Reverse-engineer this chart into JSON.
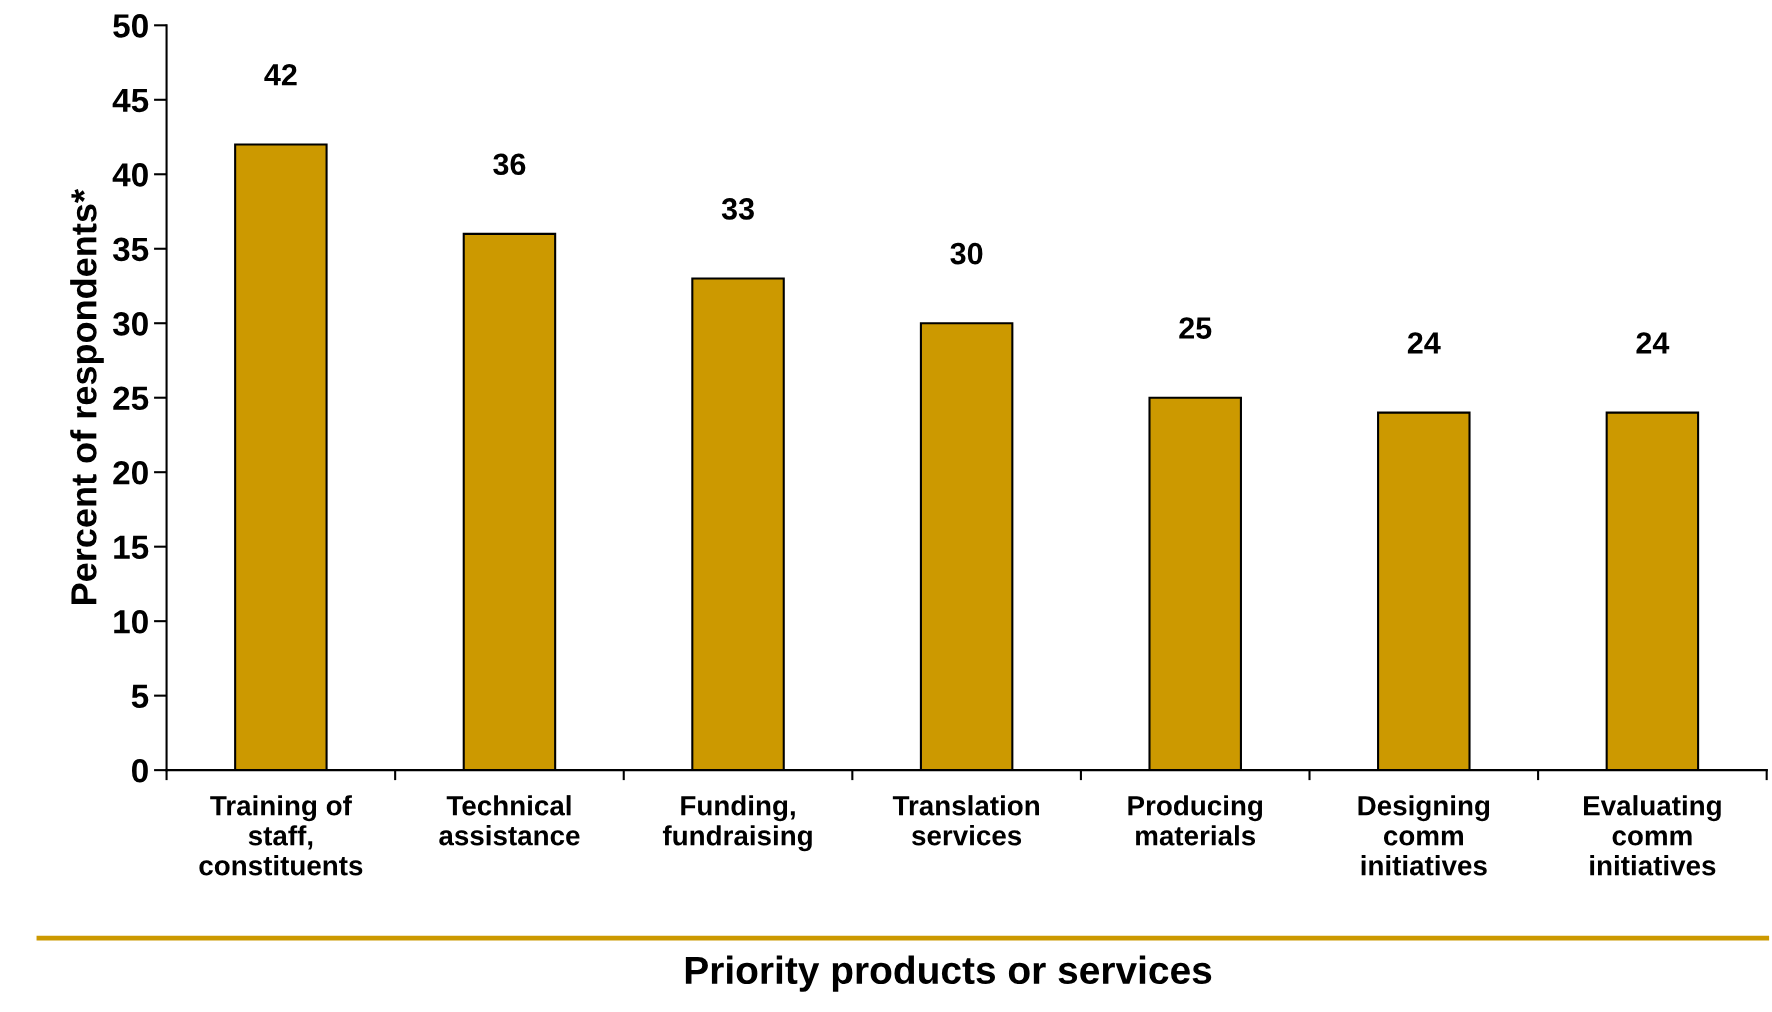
{
  "chart_data": {
    "type": "bar",
    "xlabel": "Priority products or services",
    "ylabel": "Percent of respondents*",
    "categories": [
      "Training of\nstaff,\nconstituents",
      "Technical\nassistance",
      "Funding,\nfundraising",
      "Translation\nservices",
      "Producing\nmaterials",
      "Designing\ncomm\ninitiatives",
      "Evaluating\ncomm\ninitiatives"
    ],
    "values": [
      42,
      36,
      33,
      30,
      25,
      24,
      24
    ],
    "color": "#cc9900",
    "data_labels": true,
    "ylim": [
      0,
      50
    ],
    "yticks": [
      0,
      5,
      10,
      15,
      20,
      25,
      30,
      35,
      40,
      45,
      50
    ],
    "grid": false,
    "legend": false
  }
}
